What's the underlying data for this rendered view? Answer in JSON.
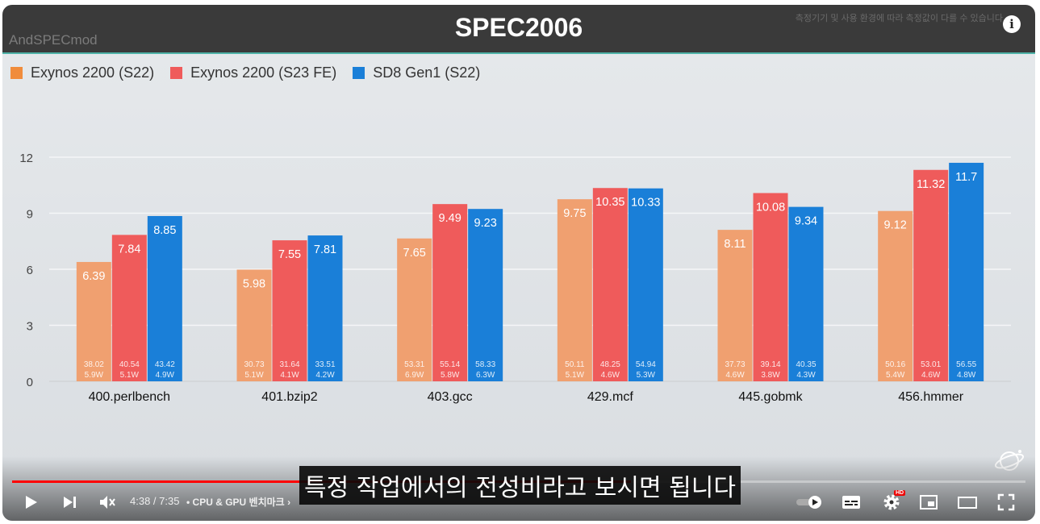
{
  "video": {
    "title": "SPEC2006",
    "watermark": "AndSPECmod",
    "notice": "측정기기 및 사용 환경에 따라 측정값이 다를 수 있습니다",
    "subtitle": "특정 작업에서의 전성비라고 보시면 됩니다",
    "time": "4:38 / 7:35",
    "chapter": "• CPU & GPU 벤치마크",
    "progress_fraction": 0.611,
    "hd_badge": "HD"
  },
  "legend": [
    {
      "label": "Exynos 2200 (S22)",
      "color": "#f08c3c"
    },
    {
      "label": "Exynos 2200 (S23 FE)",
      "color": "#ef5b5b"
    },
    {
      "label": "SD8 Gen1 (S22)",
      "color": "#1a7fd8"
    }
  ],
  "chart_data": {
    "type": "bar",
    "title": "SPEC2006",
    "categories": [
      "400.perlbench",
      "401.bzip2",
      "403.gcc",
      "429.mcf",
      "445.gobmk",
      "456.hmmer"
    ],
    "series": [
      {
        "name": "Exynos 2200 (S22)",
        "color": "#f0a070",
        "values": [
          6.39,
          5.98,
          7.65,
          9.75,
          8.11,
          9.12
        ],
        "sub1": [
          "38.02",
          "30.73",
          "53.31",
          "50.11",
          "37.73",
          "50.16"
        ],
        "sub2": [
          "5.9W",
          "5.1W",
          "6.9W",
          "5.1W",
          "4.6W",
          "5.4W"
        ]
      },
      {
        "name": "Exynos 2200 (S23 FE)",
        "color": "#ef5b5b",
        "values": [
          7.84,
          7.55,
          9.49,
          10.35,
          10.08,
          11.32
        ],
        "sub1": [
          "40.54",
          "31.64",
          "55.14",
          "48.25",
          "39.14",
          "53.01"
        ],
        "sub2": [
          "5.1W",
          "4.1W",
          "5.8W",
          "4.6W",
          "3.8W",
          "4.6W"
        ]
      },
      {
        "name": "SD8 Gen1 (S22)",
        "color": "#1a7fd8",
        "values": [
          8.85,
          7.81,
          9.23,
          10.33,
          9.34,
          11.7
        ],
        "sub1": [
          "43.42",
          "33.51",
          "58.33",
          "54.94",
          "40.35",
          "56.55"
        ],
        "sub2": [
          "4.9W",
          "4.2W",
          "6.3W",
          "5.3W",
          "4.3W",
          "4.8W"
        ]
      }
    ],
    "yticks": [
      0,
      3,
      6,
      9,
      12
    ],
    "ylim": [
      0,
      12
    ],
    "grid": true,
    "legend_position": "top-left"
  },
  "icons": {
    "play": "play-icon",
    "next": "next-icon",
    "mute": "mute-icon",
    "autoplay": "autoplay-toggle-icon",
    "captions": "captions-icon",
    "settings": "gear-icon",
    "miniplayer": "miniplayer-icon",
    "theater": "theater-icon",
    "fullscreen": "fullscreen-icon",
    "info": "info-icon"
  }
}
